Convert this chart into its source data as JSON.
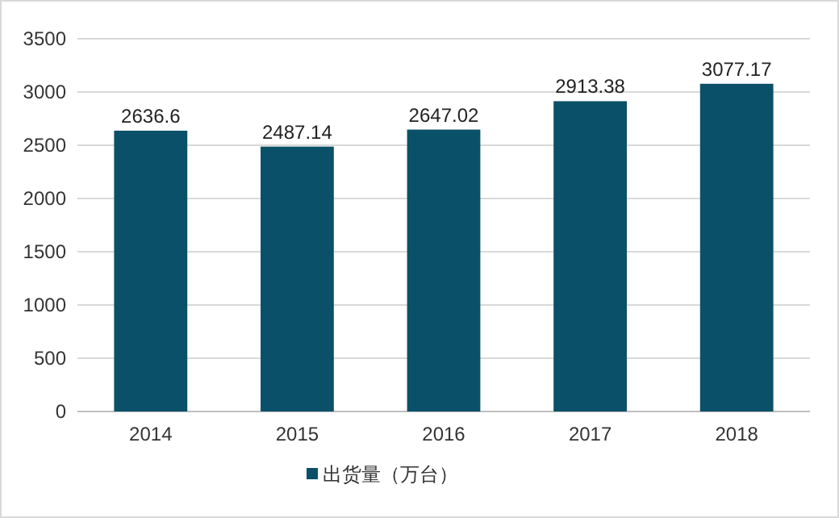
{
  "chart_data": {
    "type": "bar",
    "categories": [
      "2014",
      "2015",
      "2016",
      "2017",
      "2018"
    ],
    "series": [
      {
        "name": "出货量（万台）",
        "color": "#0b5069",
        "values": [
          2636.6,
          2487.14,
          2647.02,
          2913.38,
          3077.17
        ]
      }
    ],
    "ylim": [
      0,
      3500
    ],
    "yticks": [
      0,
      500,
      1000,
      1500,
      2000,
      2500,
      3000,
      3500
    ],
    "grid": "y",
    "legend": "bottom",
    "data_labels": true
  }
}
